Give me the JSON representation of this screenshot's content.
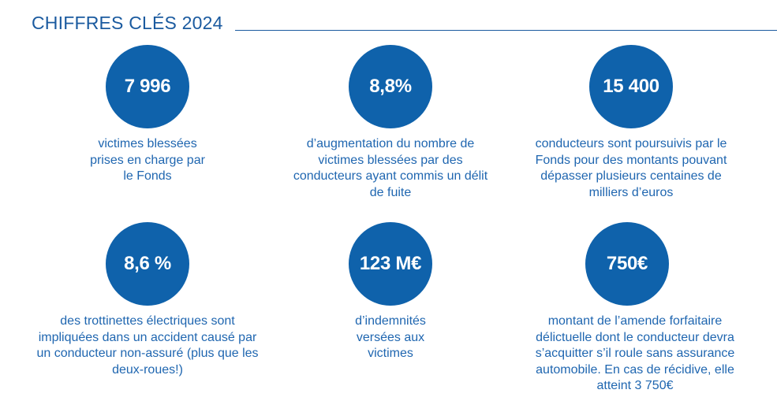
{
  "header": {
    "title": "CHIFFRES CLÉS 2024"
  },
  "colors": {
    "circle": "#0f62ab",
    "text": "#1f66b0",
    "title": "#1a5a9f"
  },
  "stats": [
    {
      "value": "7 996",
      "description": "victimes blessées prises en charge par le Fonds"
    },
    {
      "value": "8,8%",
      "description": "d’augmentation du nombre de victimes blessées par des conducteurs ayant commis un délit de fuite"
    },
    {
      "value": "15 400",
      "description": "conducteurs sont poursuivis par le Fonds pour des montants pouvant dépasser plusieurs centaines de milliers d’euros"
    },
    {
      "value": "8,6 %",
      "description": "des trottinettes électriques sont impliquées dans un accident causé par un conducteur non-assuré (plus que les deux-roues!)"
    },
    {
      "value": "123 M€",
      "description": "d’indemnités versées aux victimes"
    },
    {
      "value": "750€",
      "description": "montant de l’amende forfaitaire délictuelle dont le conducteur devra s’acquitter s’il roule sans assurance automobile. En cas de récidive, elle atteint 3 750€"
    }
  ]
}
